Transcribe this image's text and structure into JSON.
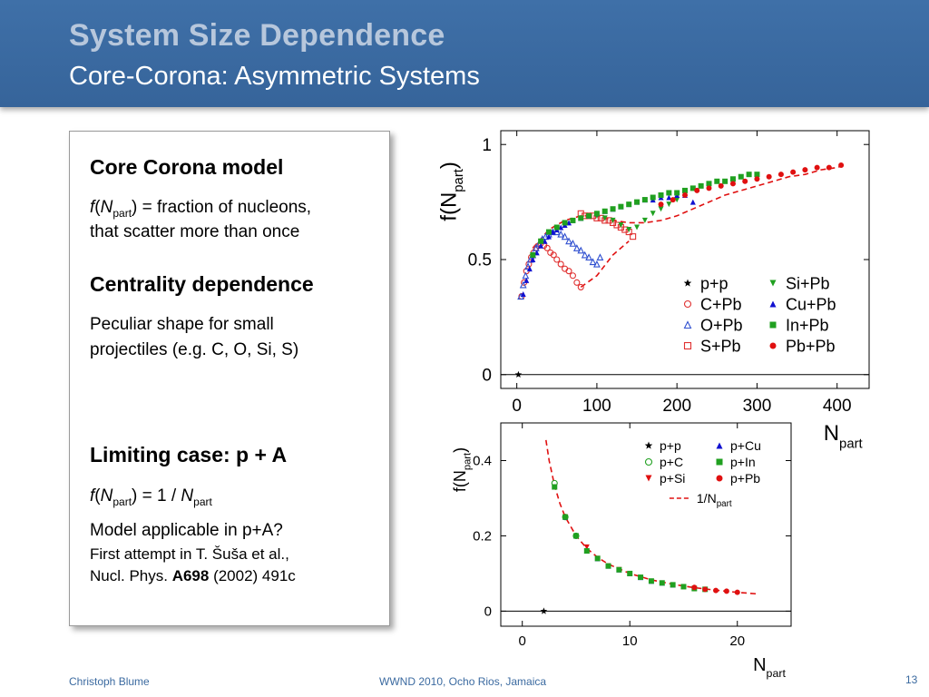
{
  "header": {
    "title": "System Size Dependence",
    "subtitle": "Core-Corona: Asymmetric Systems"
  },
  "textbox": {
    "core_heading": "Core Corona model",
    "f_italic": "f",
    "paren_open": "(",
    "N_italic": "N",
    "part_sub": "part",
    "core_def": ") = fraction of nucleons,",
    "core_def2": "that scatter more than once",
    "centrality_heading": "Centrality dependence",
    "centrality_text1": "Peculiar shape for small",
    "centrality_text2": "projectiles (e.g. C, O, Si, S)",
    "limiting_heading": "Limiting case: p + A",
    "limiting_eq_mid": ") = 1 / ",
    "applicable": "Model applicable in p+A?",
    "attempt": "First attempt in T. Šuša et al.,",
    "ref_prefix": "Nucl. Phys. ",
    "ref_bold": "A698",
    "ref_suffix": " (2002) 491c"
  },
  "footer": {
    "author": "Christoph Blume",
    "event": "WWND 2010, Ocho Rios, Jamaica",
    "page": "13"
  },
  "chart_data": [
    {
      "type": "scatter",
      "ylabel": "f(Npart)",
      "xlabel": "Npart",
      "xlim": [
        -20,
        440
      ],
      "ylim": [
        -0.06,
        1.06
      ],
      "xticks": [
        "0",
        "100",
        "200",
        "300",
        "400"
      ],
      "yticks": [
        "0",
        "0.5",
        "1"
      ],
      "grid": false,
      "legend": "lower-right",
      "series": [
        {
          "name": "p+p",
          "marker": "star",
          "color": "#000000",
          "x": [
            2
          ],
          "y": [
            0.0
          ]
        },
        {
          "name": "C+Pb",
          "marker": "circle-open",
          "color": "#e03030",
          "x": [
            6,
            9,
            12,
            15,
            18,
            21,
            24,
            27,
            30,
            34,
            38,
            42,
            46,
            50,
            55,
            60,
            65,
            70,
            75,
            80
          ],
          "y": [
            0.34,
            0.4,
            0.45,
            0.48,
            0.51,
            0.53,
            0.55,
            0.56,
            0.57,
            0.56,
            0.55,
            0.53,
            0.52,
            0.5,
            0.48,
            0.46,
            0.45,
            0.43,
            0.4,
            0.38
          ]
        },
        {
          "name": "O+Pb",
          "marker": "triangle-open",
          "color": "#3050d0",
          "x": [
            5,
            8,
            11,
            14,
            17,
            20,
            24,
            28,
            32,
            36,
            40,
            45,
            50,
            55,
            60,
            65,
            70,
            75,
            80,
            85,
            90,
            95,
            100,
            104
          ],
          "y": [
            0.34,
            0.39,
            0.43,
            0.47,
            0.5,
            0.52,
            0.55,
            0.57,
            0.59,
            0.6,
            0.61,
            0.62,
            0.62,
            0.61,
            0.6,
            0.58,
            0.57,
            0.55,
            0.54,
            0.52,
            0.51,
            0.49,
            0.48,
            0.51
          ]
        },
        {
          "name": "S+Pb",
          "marker": "square-open",
          "color": "#e03030",
          "x": [
            80,
            85,
            90,
            95,
            100,
            105,
            110,
            115,
            120,
            125,
            130,
            135,
            140,
            145
          ],
          "y": [
            0.7,
            0.69,
            0.69,
            0.69,
            0.68,
            0.68,
            0.67,
            0.67,
            0.66,
            0.65,
            0.64,
            0.63,
            0.62,
            0.6
          ]
        },
        {
          "name": "Si+Pb",
          "marker": "triangle-down",
          "color": "#20a020",
          "x": [
            100,
            110,
            120,
            130,
            140,
            150,
            160,
            170,
            180,
            190,
            200
          ],
          "y": [
            0.69,
            0.68,
            0.67,
            0.65,
            0.63,
            0.64,
            0.67,
            0.7,
            0.72,
            0.74,
            0.76
          ]
        },
        {
          "name": "Cu+Pb",
          "marker": "triangle",
          "color": "#1010d0",
          "x": [
            8,
            12,
            16,
            20,
            25,
            30,
            35,
            40,
            45,
            50,
            55,
            60,
            65,
            70,
            80,
            90,
            100,
            110,
            120,
            130,
            140,
            150,
            160,
            170,
            180,
            190,
            200,
            210,
            220
          ],
          "y": [
            0.35,
            0.41,
            0.46,
            0.5,
            0.53,
            0.56,
            0.58,
            0.6,
            0.62,
            0.63,
            0.64,
            0.65,
            0.66,
            0.67,
            0.68,
            0.69,
            0.7,
            0.71,
            0.72,
            0.73,
            0.74,
            0.75,
            0.76,
            0.76,
            0.77,
            0.77,
            0.78,
            0.78,
            0.75
          ]
        },
        {
          "name": "In+Pb",
          "marker": "square",
          "color": "#20a020",
          "x": [
            20,
            30,
            40,
            50,
            60,
            70,
            80,
            90,
            100,
            110,
            120,
            130,
            140,
            150,
            160,
            170,
            180,
            190,
            200,
            210,
            220,
            230,
            240,
            250,
            260,
            270,
            280,
            290,
            300
          ],
          "y": [
            0.52,
            0.58,
            0.62,
            0.64,
            0.66,
            0.67,
            0.68,
            0.69,
            0.7,
            0.71,
            0.72,
            0.73,
            0.74,
            0.75,
            0.76,
            0.77,
            0.78,
            0.79,
            0.79,
            0.8,
            0.81,
            0.82,
            0.83,
            0.84,
            0.84,
            0.85,
            0.86,
            0.87,
            0.87
          ]
        },
        {
          "name": "Pb+Pb",
          "marker": "circle",
          "color": "#e01010",
          "x": [
            180,
            195,
            210,
            225,
            240,
            255,
            270,
            285,
            300,
            315,
            330,
            345,
            360,
            375,
            390,
            405
          ],
          "y": [
            0.74,
            0.76,
            0.78,
            0.8,
            0.81,
            0.82,
            0.83,
            0.84,
            0.85,
            0.86,
            0.87,
            0.88,
            0.89,
            0.9,
            0.9,
            0.91
          ]
        }
      ],
      "model_curves": [
        {
          "style": "dashed",
          "color": "#e01010",
          "x": [
            20,
            40,
            60,
            80,
            100,
            120,
            140,
            160,
            180,
            200,
            220,
            240,
            260,
            280,
            300,
            320,
            340,
            360,
            380,
            400,
            410
          ],
          "y": [
            0.55,
            0.63,
            0.67,
            0.69,
            0.69,
            0.67,
            0.66,
            0.66,
            0.67,
            0.69,
            0.72,
            0.75,
            0.78,
            0.8,
            0.82,
            0.84,
            0.86,
            0.87,
            0.89,
            0.9,
            0.91
          ]
        },
        {
          "style": "dashed",
          "color": "#e01010",
          "x": [
            80,
            100,
            120,
            140
          ],
          "y": [
            0.38,
            0.43,
            0.52,
            0.58
          ]
        }
      ]
    },
    {
      "type": "scatter",
      "ylabel": "f(Npart)",
      "xlabel": "Npart",
      "xlim": [
        -2,
        25
      ],
      "ylim": [
        -0.04,
        0.5
      ],
      "xticks": [
        "0",
        "10",
        "20"
      ],
      "yticks": [
        "0",
        "0.2",
        "0.4"
      ],
      "grid": false,
      "legend": "upper-right",
      "series": [
        {
          "name": "p+p",
          "marker": "star",
          "color": "#000000",
          "x": [
            2
          ],
          "y": [
            0.0
          ]
        },
        {
          "name": "p+C",
          "marker": "circle-open",
          "color": "#20a020",
          "x": [
            3,
            4,
            5
          ],
          "y": [
            0.34,
            0.25,
            0.2
          ]
        },
        {
          "name": "p+Si",
          "marker": "triangle-down",
          "color": "#e01010",
          "x": [
            3,
            4,
            5,
            6,
            7,
            8,
            9
          ],
          "y": [
            0.33,
            0.25,
            0.2,
            0.17,
            0.14,
            0.12,
            0.11
          ]
        },
        {
          "name": "p+Cu",
          "marker": "triangle",
          "color": "#1010d0",
          "x": [
            3,
            4,
            5,
            6,
            7,
            8,
            9,
            10,
            11,
            12,
            13,
            14
          ],
          "y": [
            0.33,
            0.25,
            0.2,
            0.16,
            0.14,
            0.12,
            0.11,
            0.1,
            0.09,
            0.08,
            0.075,
            0.07
          ]
        },
        {
          "name": "p+In",
          "marker": "square",
          "color": "#20a020",
          "x": [
            3,
            4,
            5,
            6,
            7,
            8,
            9,
            10,
            11,
            12,
            13,
            14,
            15,
            16,
            17
          ],
          "y": [
            0.33,
            0.25,
            0.2,
            0.16,
            0.14,
            0.12,
            0.11,
            0.1,
            0.09,
            0.08,
            0.075,
            0.07,
            0.065,
            0.06,
            0.058
          ]
        },
        {
          "name": "p+Pb",
          "marker": "circle",
          "color": "#e01010",
          "x": [
            16,
            17,
            18,
            19,
            20
          ],
          "y": [
            0.063,
            0.058,
            0.055,
            0.053,
            0.05
          ]
        }
      ],
      "model_curves": [
        {
          "name": "1/Npart",
          "style": "dashed",
          "color": "#e01010",
          "x": [
            2.2,
            2.5,
            3,
            3.5,
            4,
            5,
            6,
            7,
            8,
            10,
            12,
            14,
            16,
            18,
            20,
            22
          ],
          "y": [
            0.4545,
            0.4,
            0.3333,
            0.2857,
            0.25,
            0.2,
            0.1667,
            0.1429,
            0.125,
            0.1,
            0.0833,
            0.0714,
            0.0625,
            0.0556,
            0.05,
            0.0455
          ]
        }
      ]
    }
  ]
}
